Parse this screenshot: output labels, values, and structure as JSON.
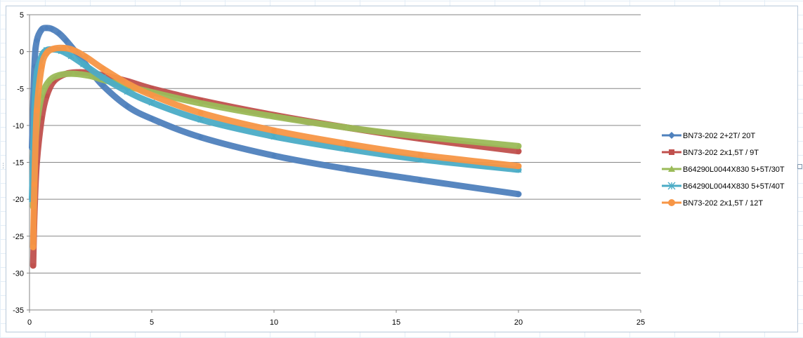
{
  "chart_data": {
    "type": "line",
    "title": "",
    "xlabel": "",
    "ylabel": "",
    "xlim": [
      0,
      25
    ],
    "ylim": [
      -35,
      5
    ],
    "x_ticks": [
      0,
      5,
      10,
      15,
      20,
      25
    ],
    "y_ticks": [
      5,
      0,
      -5,
      -10,
      -15,
      -20,
      -25,
      -30,
      -35
    ],
    "x_tick_labels": [
      "0",
      "5",
      "10",
      "15",
      "20",
      "25"
    ],
    "y_tick_labels": [
      "5",
      "0",
      "-5",
      "-10",
      "-15",
      "-20",
      "-25",
      "-30",
      "-35"
    ],
    "grid": "horizontal",
    "legend_position": "right",
    "series": [
      {
        "name": "BN73-202 2+2T/ 20T",
        "color": "#4f81bd",
        "marker": "diamond",
        "x": [
          0.1,
          0.2,
          0.3,
          0.5,
          0.7,
          0.9,
          1.2,
          1.5,
          2,
          2.5,
          3,
          4,
          5,
          7,
          10,
          13,
          16,
          20
        ],
        "y": [
          -13,
          -2,
          1.5,
          3,
          3.2,
          3.1,
          2.5,
          1.5,
          -0.5,
          -2.6,
          -4.6,
          -7.4,
          -9.1,
          -11.6,
          -14.1,
          -15.9,
          -17.4,
          -19.3
        ]
      },
      {
        "name": "BN73-202 2x1,5T / 9T",
        "color": "#c0504d",
        "marker": "square",
        "x": [
          0.15,
          0.2,
          0.3,
          0.5,
          0.7,
          1,
          1.5,
          2,
          2.5,
          3,
          4,
          5,
          7,
          10,
          13,
          16,
          20
        ],
        "y": [
          -29,
          -22,
          -15,
          -9,
          -6,
          -4,
          -3,
          -2.8,
          -2.9,
          -3.2,
          -4,
          -5,
          -6.6,
          -8.6,
          -10.3,
          -11.8,
          -13.5
        ]
      },
      {
        "name": "B64290L0044X830 5+5T/30T",
        "color": "#9bbb59",
        "marker": "triangle",
        "x": [
          0.15,
          0.2,
          0.3,
          0.5,
          0.8,
          1.2,
          1.8,
          2.5,
          3,
          4,
          5,
          7,
          10,
          13,
          16,
          20
        ],
        "y": [
          -21,
          -15,
          -10,
          -6,
          -4,
          -3.2,
          -3,
          -3.3,
          -3.8,
          -4.7,
          -5.5,
          -7,
          -8.8,
          -10.3,
          -11.5,
          -12.8
        ]
      },
      {
        "name": "B64290L0044X830 5+5T/40T",
        "color": "#4bacc6",
        "marker": "star",
        "x": [
          0.1,
          0.2,
          0.3,
          0.5,
          0.7,
          1,
          1.3,
          1.7,
          2.2,
          3,
          4,
          5,
          7,
          10,
          13,
          16,
          20
        ],
        "y": [
          -20,
          -8,
          -3,
          -0.6,
          0.2,
          0.3,
          0.1,
          -0.6,
          -1.7,
          -3.5,
          -5.4,
          -6.9,
          -9.2,
          -11.5,
          -13.2,
          -14.6,
          -16
        ]
      },
      {
        "name": "BN73-202 2x1,5T / 12T",
        "color": "#f79646",
        "marker": "circle",
        "x": [
          0.15,
          0.2,
          0.3,
          0.5,
          0.7,
          1,
          1.4,
          1.8,
          2.3,
          3,
          4,
          5,
          7,
          10,
          13,
          16,
          20
        ],
        "y": [
          -26.5,
          -18,
          -8,
          -2,
          -0.2,
          0.4,
          0.5,
          0.2,
          -0.7,
          -2.3,
          -4.3,
          -5.9,
          -8.3,
          -10.7,
          -12.5,
          -14,
          -15.5
        ]
      }
    ]
  }
}
